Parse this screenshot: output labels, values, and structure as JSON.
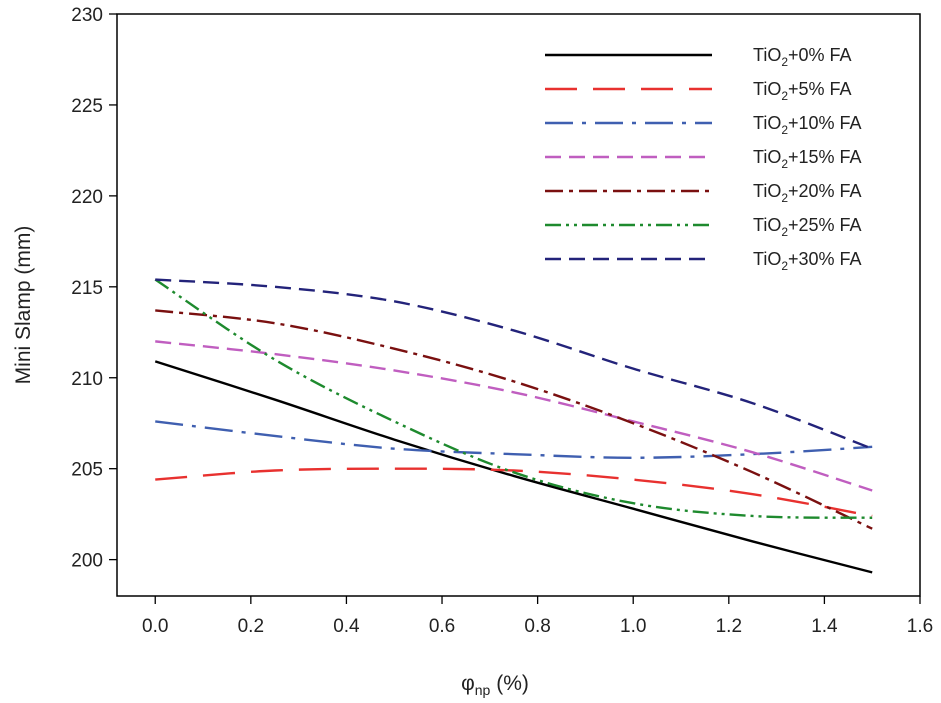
{
  "chart_data": {
    "type": "line",
    "title": "",
    "xlabel": "(%)",
    "xlabel_symbol": "φ",
    "xlabel_subscript": "np",
    "ylabel": "Mini Slamp (mm)",
    "xlim": [
      -0.08,
      1.6
    ],
    "ylim": [
      198,
      230
    ],
    "xticks": [
      0.0,
      0.2,
      0.4,
      0.6,
      0.8,
      1.0,
      1.2,
      1.4,
      1.6
    ],
    "xtick_labels": [
      "0.0",
      "0.2",
      "0.4",
      "0.6",
      "0.8",
      "1.0",
      "1.2",
      "1.4",
      "1.6"
    ],
    "yticks": [
      200,
      205,
      210,
      215,
      220,
      225,
      230
    ],
    "ytick_labels": [
      "200",
      "205",
      "210",
      "215",
      "220",
      "225",
      "230"
    ],
    "grid": false,
    "legend_position": "top-right",
    "x": [
      0.0,
      0.25,
      0.5,
      0.75,
      1.0,
      1.25,
      1.5
    ],
    "series": [
      {
        "name": "TiO2+0% FA",
        "label_pre": "TiO",
        "label_sub": "2",
        "label_post": "+0% FA",
        "color": "#000000",
        "dash": "solid",
        "values": [
          210.9,
          208.8,
          206.6,
          204.6,
          202.8,
          201.0,
          199.3
        ]
      },
      {
        "name": "TiO2+5% FA",
        "label_pre": "TiO",
        "label_sub": "2",
        "label_post": "+5% FA",
        "color": "#e8312f",
        "dash": "long-dash",
        "values": [
          204.4,
          204.9,
          205.0,
          204.9,
          204.4,
          203.6,
          202.4
        ]
      },
      {
        "name": "TiO2+10% FA",
        "label_pre": "TiO",
        "label_sub": "2",
        "label_post": "+10% FA",
        "color": "#3f5fb0",
        "dash": "long-dash-dot",
        "values": [
          207.6,
          206.8,
          206.1,
          205.8,
          205.6,
          205.8,
          206.2
        ]
      },
      {
        "name": "TiO2+15% FA",
        "label_pre": "TiO",
        "label_sub": "2",
        "label_post": "+15% FA",
        "color": "#c05ec0",
        "dash": "medium-dash",
        "values": [
          212.0,
          211.3,
          210.4,
          209.2,
          207.6,
          205.9,
          203.8
        ]
      },
      {
        "name": "TiO2+20% FA",
        "label_pre": "TiO",
        "label_sub": "2",
        "label_post": "+20% FA",
        "color": "#7a1010",
        "dash": "dash-dot",
        "values": [
          213.7,
          213.0,
          211.6,
          209.8,
          207.5,
          204.8,
          201.7
        ]
      },
      {
        "name": "TiO2+25% FA",
        "label_pre": "TiO",
        "label_sub": "2",
        "label_post": "+25% FA",
        "color": "#1e8a2e",
        "dash": "dash-dot-dot",
        "values": [
          215.4,
          211.0,
          207.6,
          204.8,
          203.1,
          202.4,
          202.3
        ]
      },
      {
        "name": "TiO2+30% FA",
        "label_pre": "TiO",
        "label_sub": "2",
        "label_post": "+30% FA",
        "color": "#23237a",
        "dash": "medium-dash",
        "values": [
          215.4,
          215.0,
          214.2,
          212.6,
          210.5,
          208.6,
          206.1
        ]
      }
    ]
  }
}
